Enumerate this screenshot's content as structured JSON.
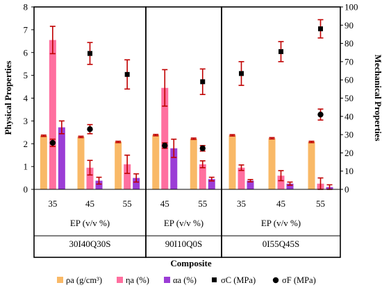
{
  "chart_data": {
    "type": "bar",
    "y_left_label": "Physical Properties",
    "y_right_label": "Mechanical Properties",
    "x_title": "Composite",
    "y_left_ticks": [
      "0",
      "1",
      "2",
      "3",
      "4",
      "5",
      "6",
      "7",
      "8"
    ],
    "y_right_ticks": [
      "0",
      "10",
      "20",
      "30",
      "40",
      "50",
      "60",
      "70",
      "80",
      "90",
      "100"
    ],
    "y_left_range": [
      0,
      8
    ],
    "y_right_range": [
      0,
      100
    ],
    "group_axis_label": "EP (v/v %)",
    "colors": {
      "rho": "#f9b967",
      "eta": "#ff6f9f",
      "alpha": "#9b3dd6",
      "sigmaC": "#000000",
      "sigmaF": "#000000",
      "error": "#c00000"
    },
    "legend": [
      {
        "key": "rho",
        "label": "ρa (g/cm³)",
        "marker": "square-fill"
      },
      {
        "key": "eta",
        "label": "ηa (%)",
        "marker": "square-fill"
      },
      {
        "key": "alpha",
        "label": "αa (%)",
        "marker": "square-fill"
      },
      {
        "key": "sigmaC",
        "label": "σC (MPa)",
        "marker": "square"
      },
      {
        "key": "sigmaF",
        "label": "σF (MPa)",
        "marker": "circle"
      }
    ],
    "groups": [
      {
        "composite": "30I40Q30S",
        "points": [
          {
            "ep": "35",
            "rho": 2.35,
            "rho_err": 0.03,
            "eta": 6.55,
            "eta_err": 0.6,
            "alpha": 2.72,
            "alpha_err": 0.28,
            "sigmaC": null,
            "sigmaC_err": null,
            "sigmaF": 25.5,
            "sigmaF_err": 2.0
          },
          {
            "ep": "45",
            "rho": 2.3,
            "rho_err": 0.03,
            "eta": 0.95,
            "eta_err": 0.32,
            "alpha": 0.38,
            "alpha_err": 0.15,
            "sigmaC": 74.5,
            "sigmaC_err": 6.0,
            "sigmaF": 33.0,
            "sigmaF_err": 2.5
          },
          {
            "ep": "55",
            "rho": 2.08,
            "rho_err": 0.03,
            "eta": 1.1,
            "eta_err": 0.4,
            "alpha": 0.5,
            "alpha_err": 0.18,
            "sigmaC": 63.0,
            "sigmaC_err": 8.0,
            "sigmaF": null,
            "sigmaF_err": null
          }
        ]
      },
      {
        "composite": "90I10Q0S",
        "points": [
          {
            "ep": "45",
            "rho": 2.38,
            "rho_err": 0.03,
            "eta": 4.45,
            "eta_err": 0.8,
            "alpha": 1.8,
            "alpha_err": 0.4,
            "sigmaC": null,
            "sigmaC_err": null,
            "sigmaF": 24.0,
            "sigmaF_err": 1.5
          },
          {
            "ep": "55",
            "rho": 2.22,
            "rho_err": 0.03,
            "eta": 1.1,
            "eta_err": 0.15,
            "alpha": 0.45,
            "alpha_err": 0.08,
            "sigmaC": 59.0,
            "sigmaC_err": 7.0,
            "sigmaF": 22.5,
            "sigmaF_err": 1.5
          }
        ]
      },
      {
        "composite": "0I55Q45S",
        "points": [
          {
            "ep": "35",
            "rho": 2.37,
            "rho_err": 0.03,
            "eta": 0.95,
            "eta_err": 0.12,
            "alpha": 0.38,
            "alpha_err": 0.05,
            "sigmaC": 63.5,
            "sigmaC_err": 6.5,
            "sigmaF": null,
            "sigmaF_err": null
          },
          {
            "ep": "45",
            "rho": 2.24,
            "rho_err": 0.03,
            "eta": 0.6,
            "eta_err": 0.22,
            "alpha": 0.25,
            "alpha_err": 0.07,
            "sigmaC": 75.5,
            "sigmaC_err": 5.5,
            "sigmaF": null,
            "sigmaF_err": null
          },
          {
            "ep": "55",
            "rho": 2.08,
            "rho_err": 0.03,
            "eta": 0.25,
            "eta_err": 0.25,
            "alpha": 0.1,
            "alpha_err": 0.1,
            "sigmaC": 88.0,
            "sigmaC_err": 5.0,
            "sigmaF": 41.0,
            "sigmaF_err": 3.0
          }
        ]
      }
    ]
  }
}
